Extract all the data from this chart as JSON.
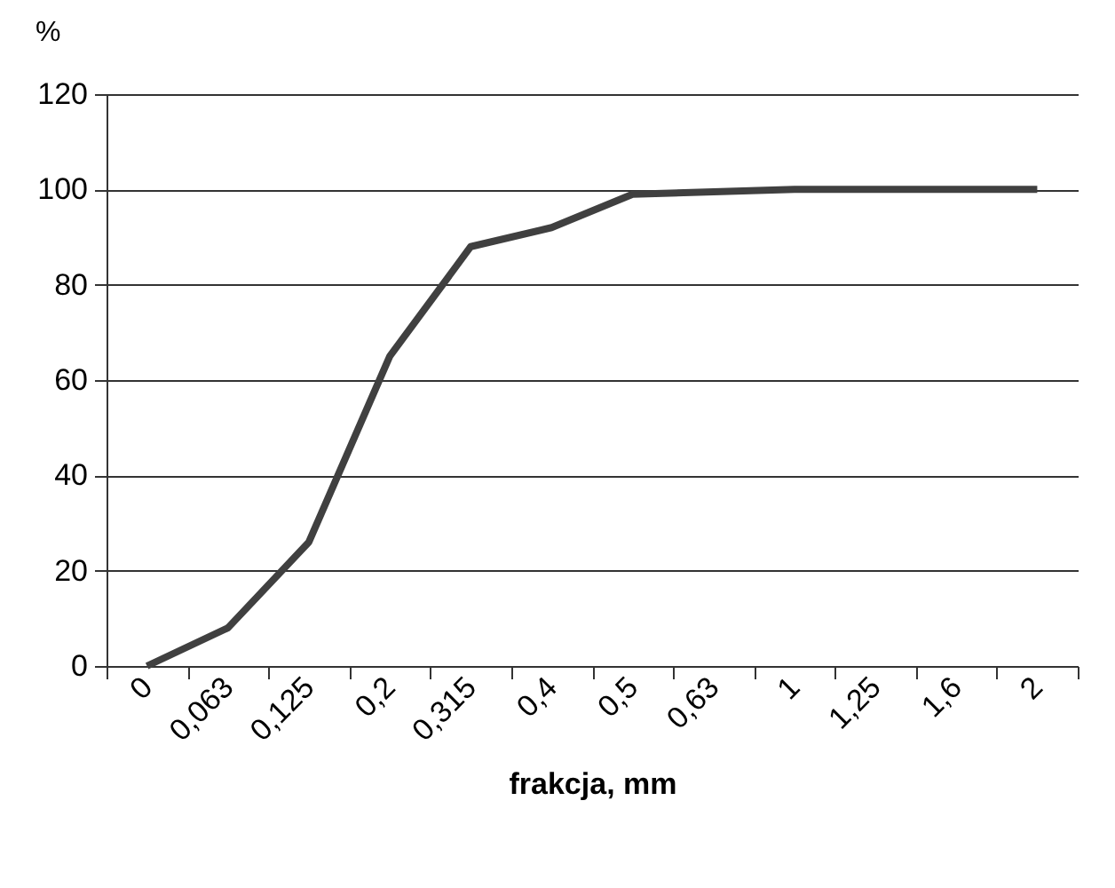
{
  "chart_data": {
    "type": "line",
    "ylabel": "%",
    "xlabel": "frakcja, mm",
    "categories": [
      "0",
      "0,063",
      "0,125",
      "0,2",
      "0,315",
      "0,4",
      "0,5",
      "0,63",
      "1",
      "1,25",
      "1,6",
      "2"
    ],
    "series": [
      {
        "color": "#404040",
        "values": [
          0,
          8,
          26,
          65,
          88,
          92,
          99,
          99.5,
          100,
          100,
          100,
          100
        ]
      }
    ],
    "ylim": [
      0,
      120
    ],
    "yticks": [
      0,
      20,
      40,
      60,
      80,
      100,
      120
    ],
    "grid": "y",
    "marker": "none",
    "line_style": "solid"
  }
}
